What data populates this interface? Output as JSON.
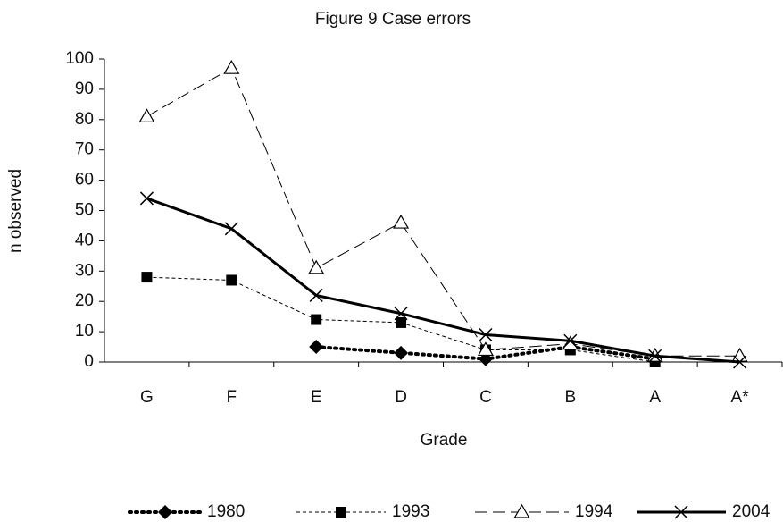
{
  "chart_data": {
    "type": "line",
    "title": "Figure 9   Case errors",
    "x_label": "Grade",
    "y_label": "n observed",
    "categories": [
      "G",
      "F",
      "E",
      "D",
      "C",
      "B",
      "A",
      "A*"
    ],
    "ylim": [
      0,
      100
    ],
    "yticks": [
      0,
      10,
      20,
      30,
      40,
      50,
      60,
      70,
      80,
      90,
      100
    ],
    "series": [
      {
        "name": "1980",
        "color": "#000000",
        "marker": "diamond",
        "line_style": "dotted",
        "values": [
          null,
          null,
          5,
          3,
          1,
          5,
          1,
          null
        ]
      },
      {
        "name": "1993",
        "color": "#000000",
        "marker": "square",
        "line_style": "short-dash",
        "values": [
          28,
          27,
          14,
          13,
          4,
          4,
          0,
          null
        ]
      },
      {
        "name": "1994",
        "color": "#000000",
        "marker": "triangle",
        "line_style": "long-dash",
        "values": [
          81,
          97,
          31,
          46,
          4,
          6,
          2,
          2
        ]
      },
      {
        "name": "2004",
        "color": "#000000",
        "marker": "cross",
        "line_style": "solid",
        "values": [
          54,
          44,
          22,
          16,
          9,
          7,
          2,
          0
        ]
      }
    ]
  }
}
